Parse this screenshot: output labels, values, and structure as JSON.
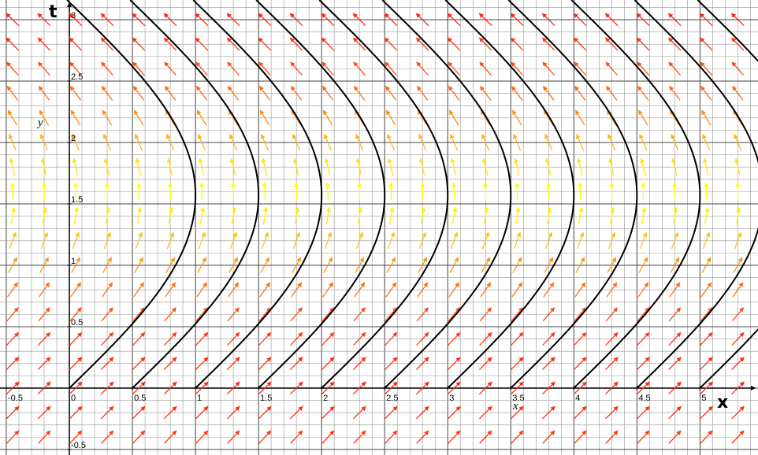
{
  "chart_data": {
    "type": "field",
    "xlim": [
      -0.55,
      5.46
    ],
    "ylim": [
      -0.545,
      3.16
    ],
    "xticks": [
      -0.5,
      0,
      0.5,
      1,
      1.5,
      2,
      2.5,
      3,
      3.5,
      4,
      4.5,
      5
    ],
    "yticks": [
      -0.5,
      0.5,
      1,
      1.5,
      2,
      2.5,
      3
    ],
    "x_axis_label": "x",
    "y_axis_label": "t",
    "annotations": [
      "y",
      "x"
    ],
    "curves": [
      0,
      0.5,
      1,
      1.5,
      2,
      2.5,
      3,
      3.5,
      4,
      4.5,
      5
    ],
    "curve_color": "#000000",
    "grid": true
  }
}
